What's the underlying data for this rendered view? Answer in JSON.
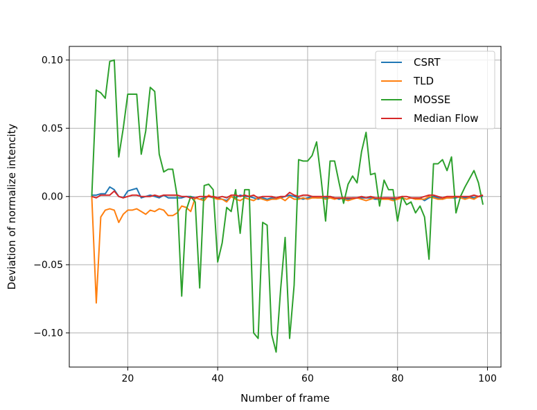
{
  "chart_data": {
    "type": "line",
    "title": "",
    "xlabel": "Number of frame",
    "ylabel": "Deviation of normalize intencity",
    "xlim": [
      7,
      103
    ],
    "ylim": [
      -0.125,
      0.11
    ],
    "x_ticks": [
      20,
      40,
      60,
      80,
      100
    ],
    "x_tick_labels": [
      "20",
      "40",
      "60",
      "80",
      "100"
    ],
    "y_ticks": [
      -0.1,
      -0.05,
      0.0,
      0.05,
      0.1
    ],
    "y_tick_labels": [
      "−0.10",
      "−0.05",
      "0.00",
      "0.05",
      "0.10"
    ],
    "grid": true,
    "legend_position": "top-right",
    "x": [
      12,
      13,
      14,
      15,
      16,
      17,
      18,
      19,
      20,
      21,
      22,
      23,
      24,
      25,
      26,
      27,
      28,
      29,
      30,
      31,
      32,
      33,
      34,
      35,
      36,
      37,
      38,
      39,
      40,
      41,
      42,
      43,
      44,
      45,
      46,
      47,
      48,
      49,
      50,
      51,
      52,
      53,
      54,
      55,
      56,
      57,
      58,
      59,
      60,
      61,
      62,
      63,
      64,
      65,
      66,
      67,
      68,
      69,
      70,
      71,
      72,
      73,
      74,
      75,
      76,
      77,
      78,
      79,
      80,
      81,
      82,
      83,
      84,
      85,
      86,
      87,
      88,
      89,
      90,
      91,
      92,
      93,
      94,
      95,
      96,
      97,
      98,
      99
    ],
    "series": [
      {
        "name": "CSRT",
        "color": "#1f77b4",
        "values": [
          0.001,
          0.001,
          0.002,
          0.002,
          0.007,
          0.005,
          0.0,
          -0.001,
          0.004,
          0.005,
          0.006,
          -0.001,
          0.0,
          0.001,
          0.0,
          -0.001,
          0.001,
          -0.001,
          -0.001,
          -0.001,
          -0.001,
          0.0,
          0.0,
          -0.001,
          -0.002,
          -0.001,
          0.0,
          -0.001,
          -0.001,
          -0.002,
          -0.003,
          0.0,
          -0.001,
          0.001,
          0.0,
          0.0,
          -0.001,
          -0.002,
          -0.001,
          -0.002,
          -0.001,
          -0.002,
          -0.001,
          0.0,
          0.001,
          0.0,
          -0.001,
          -0.002,
          -0.001,
          0.0,
          -0.001,
          -0.001,
          -0.001,
          0.0,
          -0.001,
          -0.002,
          -0.001,
          -0.002,
          -0.001,
          -0.001,
          -0.001,
          -0.001,
          -0.001,
          -0.002,
          -0.002,
          -0.001,
          -0.001,
          -0.002,
          -0.001,
          -0.001,
          -0.002,
          -0.001,
          -0.002,
          -0.001,
          -0.003,
          -0.001,
          0.0,
          -0.001,
          -0.002,
          -0.001,
          -0.001,
          -0.001,
          0.0,
          -0.001,
          0.0,
          -0.001,
          0.0,
          0.0
        ]
      },
      {
        "name": "TLD",
        "color": "#ff7f0e",
        "values": [
          0.0,
          -0.078,
          -0.015,
          -0.01,
          -0.009,
          -0.01,
          -0.019,
          -0.013,
          -0.01,
          -0.01,
          -0.009,
          -0.011,
          -0.013,
          -0.01,
          -0.011,
          -0.009,
          -0.01,
          -0.014,
          -0.014,
          -0.012,
          -0.007,
          -0.008,
          -0.011,
          -0.001,
          -0.002,
          -0.003,
          0.001,
          -0.001,
          -0.002,
          -0.002,
          -0.004,
          0.0,
          -0.002,
          -0.003,
          -0.001,
          -0.002,
          -0.003,
          -0.001,
          -0.002,
          -0.003,
          -0.002,
          -0.002,
          -0.001,
          -0.003,
          0.0,
          -0.002,
          -0.002,
          -0.001,
          -0.002,
          -0.001,
          -0.001,
          -0.001,
          -0.002,
          -0.001,
          -0.002,
          -0.001,
          -0.002,
          -0.003,
          -0.002,
          -0.001,
          -0.002,
          -0.003,
          -0.002,
          -0.001,
          -0.002,
          -0.002,
          -0.002,
          -0.003,
          -0.002,
          -0.001,
          -0.002,
          -0.001,
          -0.002,
          -0.002,
          -0.002,
          0.0,
          -0.001,
          -0.002,
          -0.002,
          -0.001,
          -0.001,
          0.0,
          -0.001,
          -0.002,
          -0.001,
          -0.002,
          0.0,
          0.001
        ]
      },
      {
        "name": "MOSSE",
        "color": "#2ca02c",
        "values": [
          0.0,
          0.078,
          0.076,
          0.072,
          0.099,
          0.1,
          0.029,
          0.05,
          0.075,
          0.075,
          0.075,
          0.031,
          0.048,
          0.08,
          0.077,
          0.031,
          0.018,
          0.02,
          0.02,
          0.0,
          -0.073,
          -0.01,
          0.0,
          -0.004,
          -0.067,
          0.008,
          0.009,
          0.005,
          -0.048,
          -0.034,
          -0.008,
          -0.011,
          0.005,
          -0.027,
          0.005,
          0.005,
          -0.1,
          -0.104,
          -0.019,
          -0.021,
          -0.101,
          -0.114,
          -0.068,
          -0.03,
          -0.104,
          -0.065,
          0.027,
          0.026,
          0.026,
          0.03,
          0.04,
          0.013,
          -0.018,
          0.026,
          0.026,
          0.01,
          -0.005,
          0.009,
          0.015,
          0.01,
          0.033,
          0.047,
          0.016,
          0.017,
          -0.007,
          0.012,
          0.005,
          0.005,
          -0.018,
          0.0,
          -0.006,
          -0.004,
          -0.012,
          -0.007,
          -0.015,
          -0.046,
          0.024,
          0.024,
          0.027,
          0.019,
          0.029,
          -0.012,
          0.0,
          0.007,
          0.013,
          0.019,
          0.01,
          -0.006
        ]
      },
      {
        "name": "Median Flow",
        "color": "#d62728",
        "values": [
          0.0,
          -0.001,
          0.001,
          0.001,
          0.001,
          0.004,
          0.0,
          -0.001,
          0.0,
          0.001,
          0.001,
          0.0,
          0.0,
          0.0,
          0.001,
          0.0,
          0.001,
          0.001,
          0.001,
          0.001,
          0.0,
          0.0,
          -0.001,
          -0.001,
          0.0,
          0.0,
          0.0,
          0.0,
          -0.001,
          0.0,
          -0.001,
          0.001,
          0.001,
          0.0,
          0.001,
          0.0,
          0.001,
          -0.001,
          0.0,
          0.0,
          0.0,
          -0.001,
          0.0,
          0.0,
          0.003,
          0.001,
          0.0,
          0.001,
          0.001,
          0.0,
          0.0,
          0.0,
          0.0,
          0.0,
          -0.001,
          -0.001,
          -0.001,
          -0.001,
          -0.001,
          -0.001,
          0.0,
          -0.001,
          0.0,
          -0.001,
          -0.001,
          -0.001,
          -0.001,
          -0.001,
          -0.001,
          0.0,
          0.0,
          -0.001,
          -0.001,
          -0.001,
          0.0,
          0.001,
          0.001,
          0.0,
          -0.001,
          0.0,
          0.0,
          0.0,
          0.0,
          0.0,
          0.0,
          0.001,
          0.0,
          0.001
        ]
      }
    ]
  }
}
